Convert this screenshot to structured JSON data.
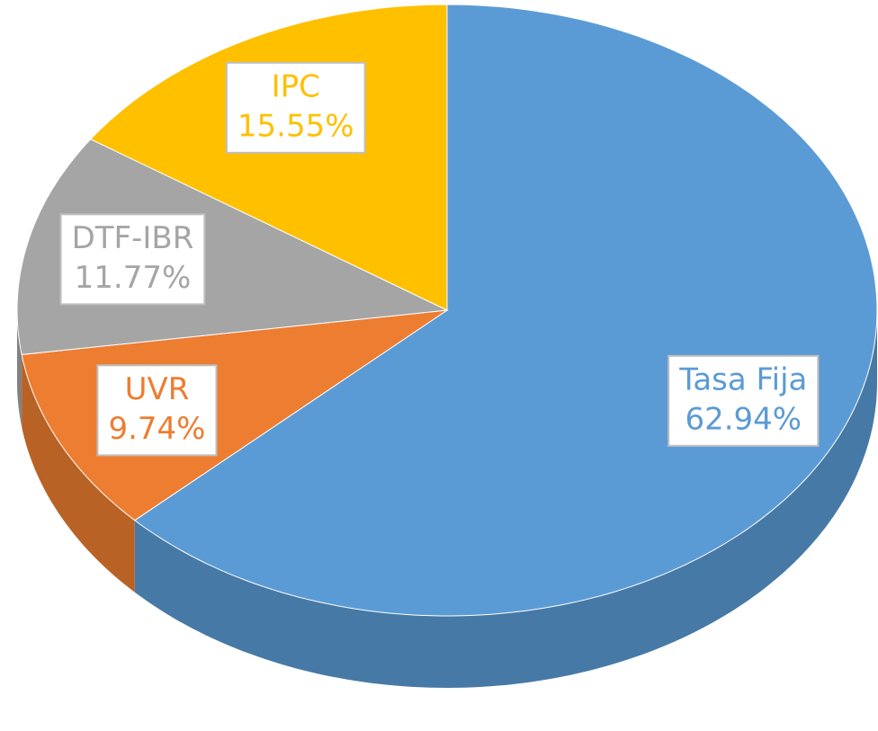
{
  "chart_data": {
    "type": "pie3d",
    "categories": [
      "Tasa Fija",
      "UVR",
      "DTF-IBR",
      "IPC"
    ],
    "values": [
      62.94,
      9.74,
      11.77,
      15.55
    ],
    "value_labels": [
      "62.94%",
      "9.74%",
      "11.77%",
      "15.55%"
    ],
    "colors": [
      "#5b9bd5",
      "#ed7d31",
      "#a5a5a5",
      "#ffc000"
    ]
  }
}
